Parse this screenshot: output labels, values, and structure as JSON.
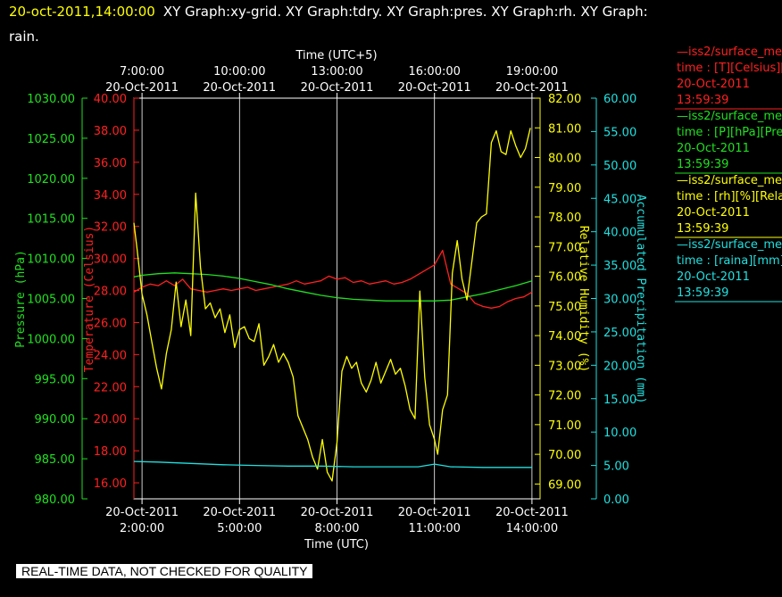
{
  "header": {
    "timestamp": "20-oct-2011,14:00:00",
    "graphs_line1": "XY Graph:xy-grid.  XY Graph:tdry.  XY Graph:pres.  XY Graph:rh.  XY Graph:",
    "graphs_line2": "rain."
  },
  "footer": {
    "qa_text": "REAL-TIME DATA, NOT CHECKED FOR QUALITY"
  },
  "legend": [
    {
      "color": "#ff2020",
      "lines": [
        "—iss2/surface_me",
        "time : [T][Celsius][T",
        "20-Oct-2011",
        "13:59:39"
      ]
    },
    {
      "color": "#20e020",
      "lines": [
        "—iss2/surface_me",
        "time : [P][hPa][Pres",
        "20-Oct-2011",
        "13:59:39"
      ]
    },
    {
      "color": "#ffff00",
      "lines": [
        "—iss2/surface_me",
        "time : [rh][%][Relati",
        "20-Oct-2011",
        "13:59:39"
      ]
    },
    {
      "color": "#20e0e0",
      "lines": [
        "—iss2/surface_me",
        "time : [raina][mm][A",
        "20-Oct-2011",
        "13:59:39"
      ]
    }
  ],
  "chart_data": {
    "type": "line",
    "x_bottom_label": "Time (UTC)",
    "x_top_label": "Time (UTC+5)",
    "x_range_hours_utc": [
      1.75,
      14.25
    ],
    "x_bottom_ticks": [
      {
        "x": 2,
        "date": "20-Oct-2011",
        "time": "2:00:00"
      },
      {
        "x": 5,
        "date": "20-Oct-2011",
        "time": "5:00:00"
      },
      {
        "x": 8,
        "date": "20-Oct-2011",
        "time": "8:00:00"
      },
      {
        "x": 11,
        "date": "20-Oct-2011",
        "time": "11:00:00"
      },
      {
        "x": 14,
        "date": "20-Oct-2011",
        "time": "14:00:00"
      }
    ],
    "x_top_ticks": [
      {
        "x": 2,
        "time": "7:00:00",
        "date": "20-Oct-2011"
      },
      {
        "x": 5,
        "time": "10:00:00",
        "date": "20-Oct-2011"
      },
      {
        "x": 8,
        "time": "13:00:00",
        "date": "20-Oct-2011"
      },
      {
        "x": 11,
        "time": "16:00:00",
        "date": "20-Oct-2011"
      },
      {
        "x": 14,
        "time": "19:00:00",
        "date": "20-Oct-2011"
      }
    ],
    "grid": "vertical at major ticks",
    "axes": {
      "pressure": {
        "label": "Pressure (hPa)",
        "color": "#20e020",
        "range": [
          980,
          1030
        ],
        "ticks": [
          "980.00",
          "985.00",
          "990.00",
          "995.00",
          "1000.00",
          "1005.00",
          "1010.00",
          "1015.00",
          "1020.00",
          "1025.00",
          "1030.00"
        ]
      },
      "temperature": {
        "label": "Temperature (Celsius)",
        "color": "#ff2020",
        "range": [
          15,
          40
        ],
        "ticks": [
          "16.00",
          "18.00",
          "20.00",
          "22.00",
          "24.00",
          "26.00",
          "28.00",
          "30.00",
          "32.00",
          "34.00",
          "36.00",
          "38.00",
          "40.00"
        ]
      },
      "humidity": {
        "label": "Relative Humidity (%)",
        "color": "#ffff00",
        "range": [
          68.5,
          82.0
        ],
        "ticks": [
          "69.00",
          "70.00",
          "71.00",
          "72.00",
          "73.00",
          "74.00",
          "75.00",
          "76.00",
          "77.00",
          "78.00",
          "79.00",
          "80.00",
          "81.00",
          "82.00"
        ]
      },
      "precip": {
        "label": "Accumulated Precipitation (mm)",
        "color": "#20e0e0",
        "range": [
          0,
          60
        ],
        "ticks": [
          "0.00",
          "5.00",
          "10.00",
          "15.00",
          "20.00",
          "25.00",
          "30.00",
          "35.00",
          "40.00",
          "45.00",
          "50.00",
          "55.00",
          "60.00"
        ]
      }
    },
    "series": [
      {
        "axis": "temperature",
        "color": "#ff2020",
        "x": [
          1.75,
          2.0,
          2.25,
          2.5,
          2.75,
          3.0,
          3.25,
          3.5,
          3.75,
          4.0,
          4.25,
          4.5,
          4.75,
          5.0,
          5.25,
          5.5,
          5.75,
          6.0,
          6.25,
          6.5,
          6.75,
          7.0,
          7.25,
          7.5,
          7.75,
          8.0,
          8.25,
          8.5,
          8.75,
          9.0,
          9.25,
          9.5,
          9.75,
          10.0,
          10.25,
          10.5,
          10.75,
          11.0,
          11.25,
          11.5,
          11.75,
          12.0,
          12.25,
          12.5,
          12.75,
          13.0,
          13.25,
          13.5,
          13.75,
          14.0
        ],
        "y": [
          27.9,
          28.2,
          28.4,
          28.3,
          28.6,
          28.3,
          28.7,
          28.1,
          28.0,
          27.9,
          28.0,
          28.1,
          28.0,
          28.1,
          28.2,
          28.0,
          28.1,
          28.2,
          28.3,
          28.4,
          28.6,
          28.4,
          28.5,
          28.6,
          28.9,
          28.7,
          28.8,
          28.5,
          28.6,
          28.4,
          28.5,
          28.6,
          28.4,
          28.5,
          28.7,
          29.0,
          29.3,
          29.6,
          30.5,
          28.4,
          28.1,
          27.8,
          27.2,
          27.0,
          26.9,
          27.0,
          27.3,
          27.5,
          27.6,
          27.9
        ]
      },
      {
        "axis": "pressure",
        "color": "#20e020",
        "x": [
          1.75,
          2.0,
          2.5,
          3.0,
          3.5,
          4.0,
          4.5,
          5.0,
          5.5,
          6.0,
          6.5,
          7.0,
          7.5,
          8.0,
          8.5,
          9.0,
          9.5,
          10.0,
          10.5,
          11.0,
          11.5,
          12.0,
          12.5,
          13.0,
          13.5,
          14.0
        ],
        "y": [
          1007.7,
          1007.9,
          1008.1,
          1008.2,
          1008.1,
          1008.0,
          1007.8,
          1007.5,
          1007.1,
          1006.7,
          1006.2,
          1005.8,
          1005.4,
          1005.1,
          1004.9,
          1004.8,
          1004.7,
          1004.7,
          1004.7,
          1004.7,
          1004.8,
          1005.2,
          1005.6,
          1006.1,
          1006.6,
          1007.2
        ]
      },
      {
        "axis": "humidity",
        "color": "#ffff00",
        "x": [
          1.75,
          1.85,
          2.0,
          2.15,
          2.3,
          2.45,
          2.6,
          2.75,
          2.9,
          3.05,
          3.2,
          3.35,
          3.5,
          3.65,
          3.8,
          3.95,
          4.1,
          4.25,
          4.4,
          4.55,
          4.7,
          4.85,
          5.0,
          5.15,
          5.3,
          5.45,
          5.6,
          5.75,
          5.9,
          6.05,
          6.2,
          6.35,
          6.5,
          6.65,
          6.8,
          6.95,
          7.1,
          7.25,
          7.4,
          7.55,
          7.7,
          7.85,
          8.0,
          8.15,
          8.3,
          8.45,
          8.6,
          8.75,
          8.9,
          9.05,
          9.2,
          9.35,
          9.5,
          9.65,
          9.8,
          9.95,
          10.1,
          10.25,
          10.4,
          10.55,
          10.7,
          10.85,
          11.0,
          11.1,
          11.25,
          11.4,
          11.55,
          11.7,
          11.85,
          12.0,
          12.15,
          12.3,
          12.45,
          12.6,
          12.75,
          12.9,
          13.05,
          13.2,
          13.35,
          13.5,
          13.65,
          13.8,
          13.95
        ],
        "y": [
          77.8,
          76.9,
          75.4,
          74.7,
          73.8,
          72.9,
          72.2,
          73.4,
          74.2,
          75.8,
          74.3,
          75.2,
          74.0,
          78.8,
          76.3,
          74.9,
          75.1,
          74.6,
          74.9,
          74.1,
          74.7,
          73.6,
          74.2,
          74.3,
          73.9,
          73.8,
          74.4,
          73.0,
          73.3,
          73.7,
          73.1,
          73.4,
          73.1,
          72.6,
          71.3,
          70.9,
          70.5,
          69.9,
          69.5,
          70.5,
          69.4,
          69.1,
          70.4,
          72.8,
          73.3,
          72.9,
          73.1,
          72.4,
          72.1,
          72.5,
          73.1,
          72.4,
          72.8,
          73.2,
          72.7,
          72.9,
          72.3,
          71.5,
          71.2,
          75.5,
          72.6,
          71.0,
          70.5,
          70.0,
          71.5,
          72.0,
          76.1,
          77.2,
          75.9,
          75.2,
          76.5,
          77.8,
          78.0,
          78.1,
          80.5,
          80.9,
          80.2,
          80.1,
          80.9,
          80.4,
          80.0,
          80.3,
          81.0
        ]
      },
      {
        "axis": "precip",
        "color": "#20e0e0",
        "x": [
          1.75,
          2.5,
          3.5,
          4.5,
          5.5,
          6.5,
          7.5,
          8.5,
          9.5,
          10.5,
          11.0,
          11.5,
          12.5,
          13.5,
          14.0
        ],
        "y": [
          5.6,
          5.5,
          5.3,
          5.1,
          5.0,
          4.9,
          4.9,
          4.8,
          4.8,
          4.8,
          5.2,
          4.8,
          4.7,
          4.7,
          4.7
        ]
      }
    ]
  }
}
